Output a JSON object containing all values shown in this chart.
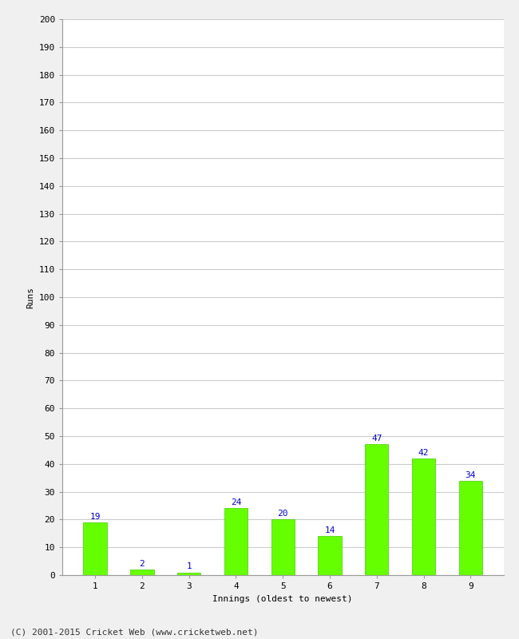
{
  "categories": [
    "1",
    "2",
    "3",
    "4",
    "5",
    "6",
    "7",
    "8",
    "9"
  ],
  "values": [
    19,
    2,
    1,
    24,
    20,
    14,
    47,
    42,
    34
  ],
  "bar_color": "#66ff00",
  "bar_edge_color": "#44cc00",
  "label_color": "#0000cc",
  "xlabel": "Innings (oldest to newest)",
  "ylabel": "Runs",
  "ylim": [
    0,
    200
  ],
  "yticks": [
    0,
    10,
    20,
    30,
    40,
    50,
    60,
    70,
    80,
    90,
    100,
    110,
    120,
    130,
    140,
    150,
    160,
    170,
    180,
    190,
    200
  ],
  "background_color": "#f0f0f0",
  "plot_bg_color": "#ffffff",
  "grid_color": "#cccccc",
  "footer": "(C) 2001-2015 Cricket Web (www.cricketweb.net)",
  "label_fontsize": 8,
  "axis_label_fontsize": 8,
  "tick_fontsize": 8,
  "footer_fontsize": 8,
  "bar_width": 0.5
}
